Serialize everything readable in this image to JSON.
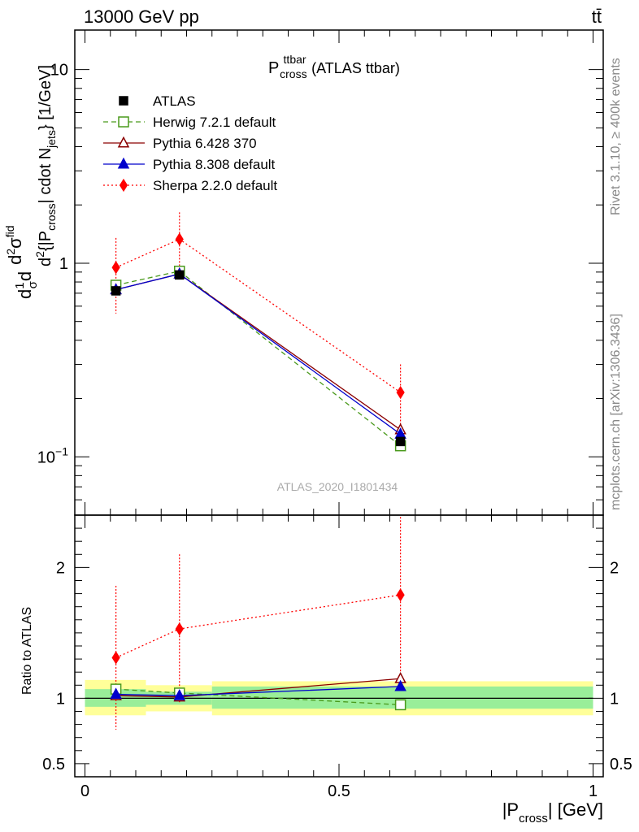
{
  "header": {
    "left": "13000 GeV pp",
    "right": "tt̄"
  },
  "side_labels": {
    "rivet": "Rivet 3.1.10, ≥ 400k events",
    "mcplots": "mcplots.cern.ch [arXiv:1306.3436]"
  },
  "analysis_id": "ATLAS_2020_I1801434",
  "plot_title": {
    "main": "P",
    "sup": "ttbar",
    "sub": "cross",
    "suffix": " (ATLAS ttbar)"
  },
  "ylabel_main": {
    "text": "d¹⁄σ d d²σᶦⁿᵈ / d²{|P_cross| cdot N_jets} [1/GeV]",
    "a": "d",
    "frac_num": "1",
    "frac_den": "σ",
    "b": "d",
    "c": "d",
    "d2": "2",
    "e": "{|P",
    "e_sub": "cross",
    "f": "| cdot N",
    "f_sub": "jets",
    "g": "} [1/GeV]",
    "num_d": "d",
    "num_2": "2",
    "num_sigma": "σ",
    "num_sup": "fid"
  },
  "ylabel_ratio": "Ratio to ATLAS",
  "xlabel": {
    "pre": "|P",
    "sub": "cross",
    "post": "| [GeV]"
  },
  "legend": [
    {
      "name": "ATLAS",
      "color": "#000000",
      "marker": "square-filled",
      "line": "none"
    },
    {
      "name": "Herwig 7.2.1 default",
      "color": "#4a9a1c",
      "marker": "square-open",
      "line": "dashed"
    },
    {
      "name": "Pythia 6.428 370",
      "color": "#8b0000",
      "marker": "triangle-open",
      "line": "solid"
    },
    {
      "name": "Pythia 8.308 default",
      "color": "#0000cc",
      "marker": "triangle-filled",
      "line": "solid"
    },
    {
      "name": "Sherpa 2.2.0 default",
      "color": "#ff0000",
      "marker": "diamond-filled",
      "line": "dotted"
    }
  ],
  "chart_data": {
    "type": "scatter",
    "x_bins": [
      [
        0.0,
        0.12
      ],
      [
        0.12,
        0.25
      ],
      [
        0.25,
        1.0
      ]
    ],
    "x": [
      0.061,
      0.186,
      0.621
    ],
    "xlim": [
      -0.02,
      1.02
    ],
    "xticks": [
      0,
      0.5,
      1
    ],
    "xtick_labels": [
      "0",
      "0.5",
      "1"
    ],
    "main": {
      "yscale": "log",
      "ylim": [
        0.05,
        16
      ],
      "ytick_labels": [
        {
          "value": 0.1,
          "label": "10",
          "sup": "−1"
        },
        {
          "value": 1,
          "label": "1",
          "sup": ""
        },
        {
          "value": 10,
          "label": "10",
          "sup": ""
        }
      ],
      "series": [
        {
          "name": "ATLAS",
          "values": [
            0.72,
            0.87,
            0.12
          ],
          "err": [
            0,
            0,
            0
          ]
        },
        {
          "name": "Herwig 7.2.1 default",
          "values": [
            0.77,
            0.91,
            0.114
          ],
          "err": [
            0,
            0,
            0
          ]
        },
        {
          "name": "Pythia 6.428 370",
          "values": [
            0.73,
            0.88,
            0.138
          ],
          "err": [
            0,
            0,
            0
          ]
        },
        {
          "name": "Pythia 8.308 default",
          "values": [
            0.73,
            0.88,
            0.131
          ],
          "err": [
            0,
            0,
            0
          ]
        },
        {
          "name": "Sherpa 2.2.0 default",
          "values": [
            0.95,
            1.33,
            0.215
          ],
          "err_lo": [
            0.4,
            0.48,
            0.085
          ],
          "err_hi": [
            0.4,
            0.5,
            0.085
          ]
        }
      ]
    },
    "ratio": {
      "ylim": [
        0.4,
        2.4
      ],
      "ytick_labels": [
        {
          "value": 0.5,
          "label": "0.5"
        },
        {
          "value": 1,
          "label": "1"
        },
        {
          "value": 2,
          "label": "2"
        }
      ],
      "band_inner": [
        [
          0.935,
          1.07
        ],
        [
          0.95,
          1.05
        ],
        [
          0.92,
          1.09
        ]
      ],
      "band_outer": [
        [
          0.87,
          1.14
        ],
        [
          0.9,
          1.1
        ],
        [
          0.87,
          1.13
        ]
      ],
      "series": [
        {
          "name": "Herwig 7.2.1 default",
          "values": [
            1.07,
            1.04,
            0.95
          ],
          "err": [
            0.02,
            0.02,
            0.02
          ]
        },
        {
          "name": "Pythia 6.428 370",
          "values": [
            1.02,
            1.01,
            1.15
          ],
          "err": [
            0,
            0,
            0
          ]
        },
        {
          "name": "Pythia 8.308 default",
          "values": [
            1.03,
            1.02,
            1.09
          ],
          "err": [
            0,
            0,
            0
          ]
        },
        {
          "name": "Sherpa 2.2.0 default",
          "values": [
            1.31,
            1.53,
            1.79
          ],
          "err": [
            0.55,
            0.57,
            0.72
          ]
        }
      ]
    }
  }
}
